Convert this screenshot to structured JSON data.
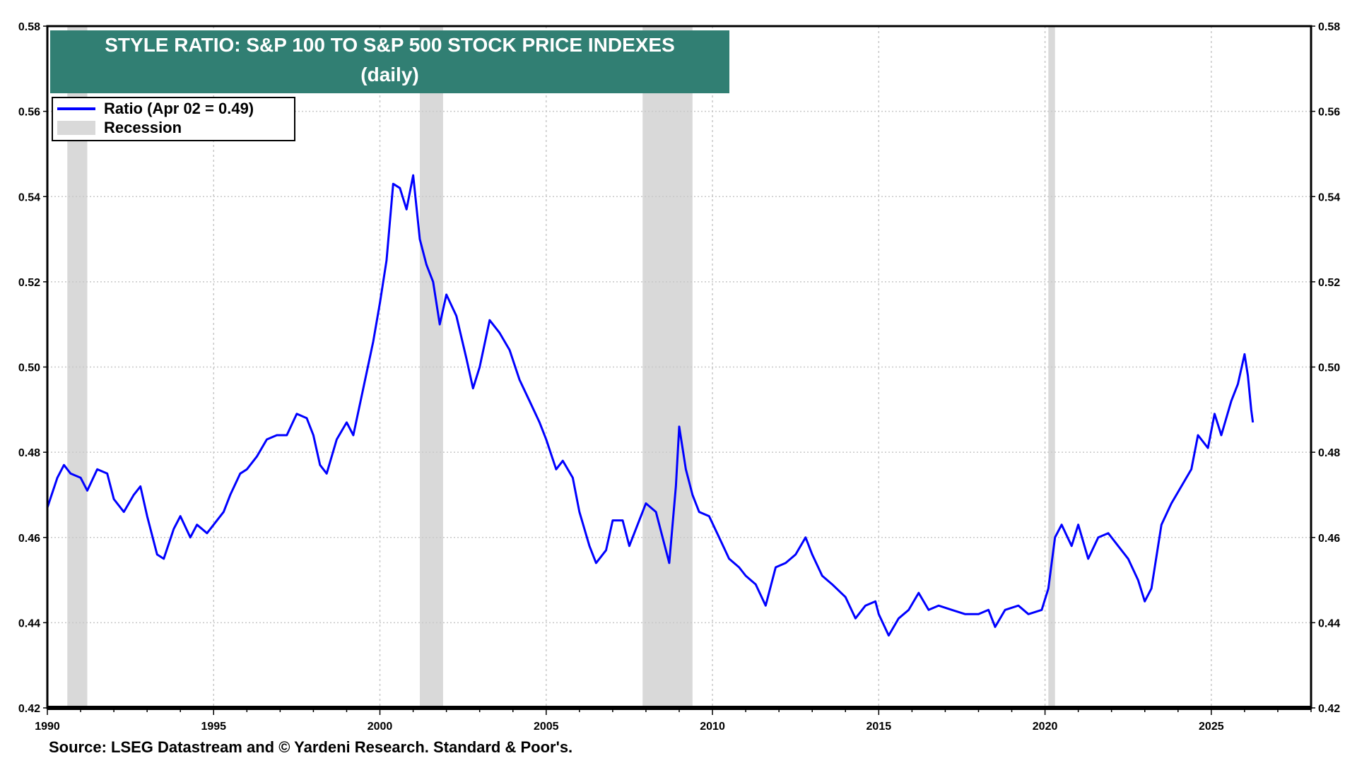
{
  "chart_data": {
    "type": "line",
    "title": "STYLE RATIO: S&P 100 TO S&P 500 STOCK PRICE INDEXES",
    "subtitle": "(daily)",
    "xlabel": "",
    "ylabel": "",
    "xlim": [
      1990,
      2028
    ],
    "ylim": [
      0.42,
      0.58
    ],
    "grid": true,
    "legend_position": "top-left",
    "x_ticks": [
      "1990",
      "1995",
      "2000",
      "2005",
      "2010",
      "2015",
      "2020",
      "2025"
    ],
    "y_ticks": [
      "0.42",
      "0.44",
      "0.46",
      "0.48",
      "0.50",
      "0.52",
      "0.54",
      "0.56",
      "0.58"
    ],
    "legend": [
      {
        "label": "Ratio (Apr 02 = 0.49)",
        "color": "#0000ff"
      },
      {
        "label": "Recession",
        "color": "#d9d9d9"
      }
    ],
    "recessions": [
      [
        1990.6,
        1991.2
      ],
      [
        2001.2,
        2001.9
      ],
      [
        2007.9,
        2009.4
      ],
      [
        2020.1,
        2020.3
      ]
    ],
    "series": [
      {
        "color": "#0000ff",
        "x": [
          1990.0,
          1990.3,
          1990.5,
          1990.7,
          1991.0,
          1991.2,
          1991.5,
          1991.8,
          1992.0,
          1992.3,
          1992.6,
          1992.8,
          1993.0,
          1993.3,
          1993.5,
          1993.8,
          1994.0,
          1994.3,
          1994.5,
          1994.8,
          1995.0,
          1995.3,
          1995.5,
          1995.8,
          1996.0,
          1996.3,
          1996.6,
          1996.9,
          1997.2,
          1997.5,
          1997.8,
          1998.0,
          1998.2,
          1998.4,
          1998.7,
          1999.0,
          1999.2,
          1999.5,
          1999.8,
          2000.0,
          2000.2,
          2000.4,
          2000.6,
          2000.8,
          2001.0,
          2001.2,
          2001.4,
          2001.6,
          2001.8,
          2002.0,
          2002.3,
          2002.6,
          2002.8,
          2003.0,
          2003.3,
          2003.6,
          2003.9,
          2004.2,
          2004.5,
          2004.8,
          2005.0,
          2005.3,
          2005.5,
          2005.8,
          2006.0,
          2006.3,
          2006.5,
          2006.8,
          2007.0,
          2007.3,
          2007.5,
          2007.8,
          2008.0,
          2008.3,
          2008.5,
          2008.7,
          2008.9,
          2009.0,
          2009.2,
          2009.4,
          2009.6,
          2009.9,
          2010.2,
          2010.5,
          2010.8,
          2011.0,
          2011.3,
          2011.6,
          2011.9,
          2012.2,
          2012.5,
          2012.8,
          2013.0,
          2013.3,
          2013.6,
          2014.0,
          2014.3,
          2014.6,
          2014.9,
          2015.0,
          2015.3,
          2015.6,
          2015.9,
          2016.2,
          2016.5,
          2016.8,
          2017.2,
          2017.6,
          2018.0,
          2018.3,
          2018.5,
          2018.8,
          2019.2,
          2019.5,
          2019.9,
          2020.1,
          2020.3,
          2020.5,
          2020.8,
          2021.0,
          2021.3,
          2021.6,
          2021.9,
          2022.2,
          2022.5,
          2022.8,
          2023.0,
          2023.2,
          2023.5,
          2023.8,
          2024.1,
          2024.4,
          2024.6,
          2024.9,
          2025.1,
          2025.3,
          2025.6,
          2025.8,
          2026.0,
          2026.1,
          2026.2,
          2026.25
        ],
        "y": [
          0.467,
          0.474,
          0.477,
          0.475,
          0.474,
          0.471,
          0.476,
          0.475,
          0.469,
          0.466,
          0.47,
          0.472,
          0.465,
          0.456,
          0.455,
          0.462,
          0.465,
          0.46,
          0.463,
          0.461,
          0.463,
          0.466,
          0.47,
          0.475,
          0.476,
          0.479,
          0.483,
          0.484,
          0.484,
          0.489,
          0.488,
          0.484,
          0.477,
          0.475,
          0.483,
          0.487,
          0.484,
          0.495,
          0.506,
          0.515,
          0.525,
          0.543,
          0.542,
          0.537,
          0.545,
          0.53,
          0.524,
          0.52,
          0.51,
          0.517,
          0.512,
          0.502,
          0.495,
          0.5,
          0.511,
          0.508,
          0.504,
          0.497,
          0.492,
          0.487,
          0.483,
          0.476,
          0.478,
          0.474,
          0.466,
          0.458,
          0.454,
          0.457,
          0.464,
          0.464,
          0.458,
          0.464,
          0.468,
          0.466,
          0.46,
          0.454,
          0.472,
          0.486,
          0.476,
          0.47,
          0.466,
          0.465,
          0.46,
          0.455,
          0.453,
          0.451,
          0.449,
          0.444,
          0.453,
          0.454,
          0.456,
          0.46,
          0.456,
          0.451,
          0.449,
          0.446,
          0.441,
          0.444,
          0.445,
          0.442,
          0.437,
          0.441,
          0.443,
          0.447,
          0.443,
          0.444,
          0.443,
          0.442,
          0.442,
          0.443,
          0.439,
          0.443,
          0.444,
          0.442,
          0.443,
          0.448,
          0.46,
          0.463,
          0.458,
          0.463,
          0.455,
          0.46,
          0.461,
          0.458,
          0.455,
          0.45,
          0.445,
          0.448,
          0.463,
          0.468,
          0.472,
          0.476,
          0.484,
          0.481,
          0.489,
          0.484,
          0.492,
          0.496,
          0.503,
          0.498,
          0.49,
          0.487
        ]
      }
    ],
    "source": "Source: LSEG Datastream and © Yardeni Research. Standard & Poor's."
  }
}
